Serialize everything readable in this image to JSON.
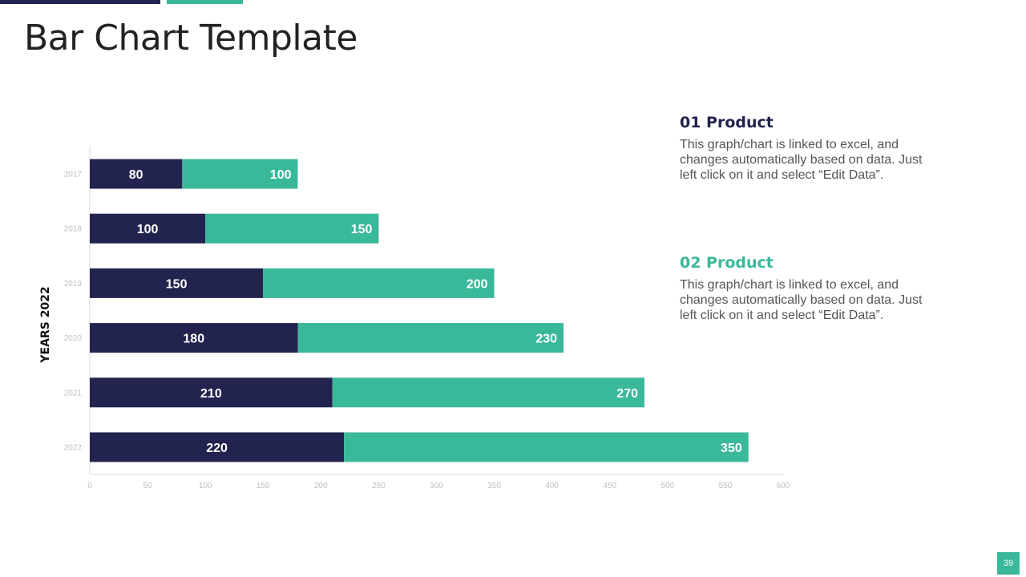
{
  "title": "Bar Chart Template",
  "colors": {
    "accent_navy": "#23234f",
    "accent_teal": "#3ab89a"
  },
  "chart_data": {
    "type": "bar",
    "orientation": "horizontal",
    "stacked": true,
    "categories": [
      "2017",
      "2018",
      "2019",
      "2020",
      "2021",
      "2022"
    ],
    "series": [
      {
        "name": "01 Product",
        "values": [
          80,
          100,
          150,
          180,
          210,
          220
        ],
        "color": "#23234f"
      },
      {
        "name": "02 Product",
        "values": [
          100,
          150,
          200,
          230,
          270,
          350
        ],
        "color": "#3ab89a"
      }
    ],
    "xlim": [
      0,
      600
    ],
    "xticks": [
      0,
      50,
      100,
      150,
      200,
      250,
      300,
      350,
      400,
      450,
      500,
      550,
      600
    ],
    "xlabel": "",
    "ylabel": "YEARS 2022",
    "grid": false
  },
  "legend": [
    {
      "title": "01 Product",
      "text": "This graph/chart is linked to excel, and changes automatically based on data. Just left click on it and select “Edit Data”."
    },
    {
      "title": "02 Product",
      "text": "This graph/chart is linked to excel, and changes automatically based on data. Just left click on it and select “Edit Data”."
    }
  ],
  "page_number": "39"
}
